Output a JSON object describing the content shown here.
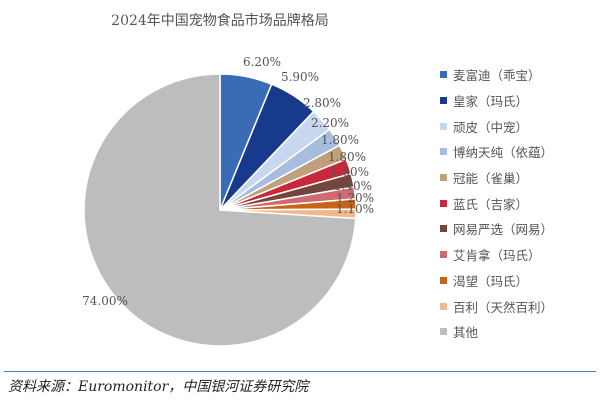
{
  "chart_data": {
    "type": "pie",
    "title": "2024年中国宠物食品市场品牌格局",
    "legend_position": "right",
    "start": "12 o'clock, clockwise",
    "slices": [
      {
        "name": "麦富迪（乖宝）",
        "value": 6.2,
        "label": "6.20%",
        "color": "#3a6cb5"
      },
      {
        "name": "皇家（玛氏）",
        "value": 5.9,
        "label": "5.90%",
        "color": "#173a8c"
      },
      {
        "name": "顽皮（中宠）",
        "value": 2.8,
        "label": "2.80%",
        "color": "#c9d7ee"
      },
      {
        "name": "博纳天纯（依蕴）",
        "value": 2.2,
        "label": "2.20%",
        "color": "#a6bde0"
      },
      {
        "name": "冠能（雀巢）",
        "value": 1.8,
        "label": "1.80%",
        "color": "#bfa07a"
      },
      {
        "name": "蓝氏（吉家）",
        "value": 1.8,
        "label": "1.80%",
        "color": "#c8283a"
      },
      {
        "name": "网易严选（网易）",
        "value": 1.6,
        "label": "1.60%",
        "color": "#74443f"
      },
      {
        "name": "艾肯拿（玛氏）",
        "value": 1.4,
        "label": "1.40%",
        "color": "#cf6b70"
      },
      {
        "name": "渴望（玛氏）",
        "value": 1.2,
        "label": "1.20%",
        "color": "#c8641a"
      },
      {
        "name": "百利（天然百利）",
        "value": 1.1,
        "label": "1.10%",
        "color": "#efb890"
      },
      {
        "name": "其他",
        "value": 74.0,
        "label": "74.00%",
        "color": "#bdbdbd"
      }
    ]
  },
  "source": "资料来源：Euromonitor，中国银河证券研究院"
}
